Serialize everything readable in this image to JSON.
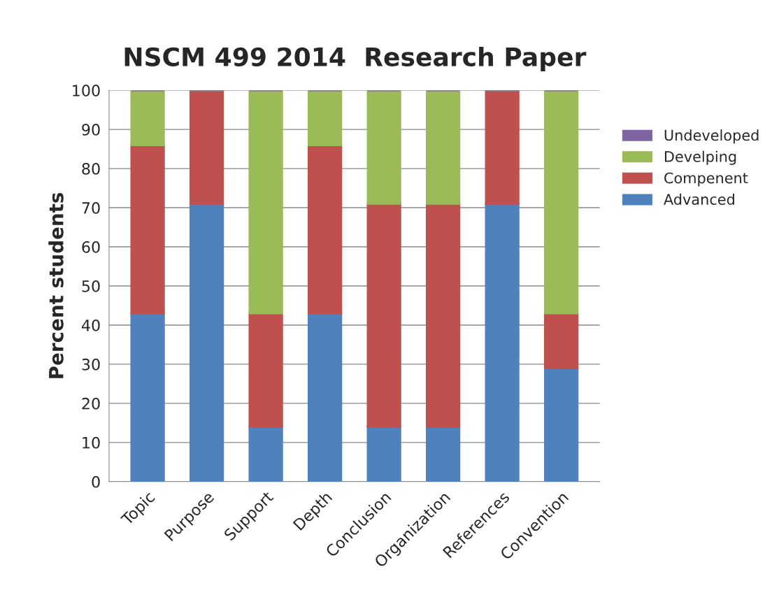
{
  "chart_data": {
    "type": "bar",
    "title": "NSCM 499 2014  Research Paper",
    "ylabel": "Percent students",
    "categories": [
      "Topic",
      "Purpose",
      "Support",
      "Depth",
      "Conclusion",
      "Organization",
      "References",
      "Convention"
    ],
    "stacked": true,
    "series": [
      {
        "name": "Advanced",
        "color": "#4f81bd",
        "values": [
          43,
          71,
          14,
          43,
          14,
          14,
          71,
          29
        ]
      },
      {
        "name": "Compenent",
        "color": "#c0504d",
        "values": [
          43,
          29,
          29,
          43,
          57,
          57,
          29,
          14
        ]
      },
      {
        "name": "Develping",
        "color": "#9bbb59",
        "values": [
          14,
          0,
          57,
          14,
          29,
          29,
          0,
          57
        ]
      },
      {
        "name": "Undeveloped",
        "color": "#8064a2",
        "values": [
          0,
          0,
          0,
          0,
          0,
          0,
          0,
          0
        ]
      }
    ],
    "ylim": [
      0,
      100
    ],
    "yticks": [
      0,
      10,
      20,
      30,
      40,
      50,
      60,
      70,
      80,
      90,
      100
    ],
    "grid": "y",
    "legend": "right"
  }
}
